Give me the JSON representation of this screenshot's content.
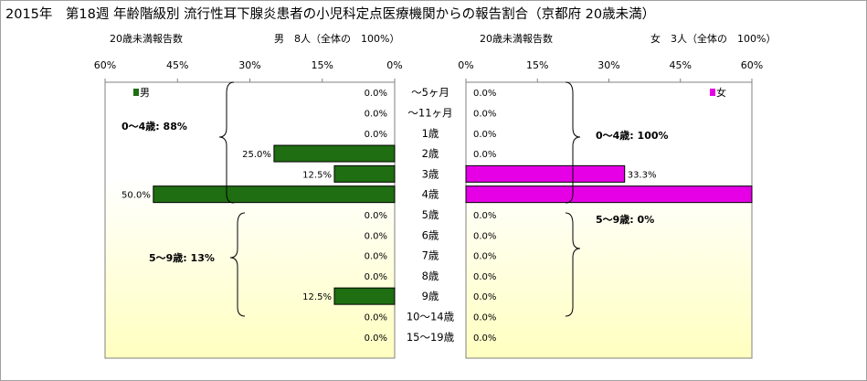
{
  "title": "2015年　第18週 年齢階級別 流行性耳下腺炎患者の小児科定点医療機関からの報告割合（京都府 20歳未満）",
  "colors": {
    "male_bar": "#1f6e12",
    "female_bar": "#e600e6",
    "panel_top": "#ffffff",
    "panel_bottom": "#ffffc0"
  },
  "left_panel": {
    "header_label": "20歳未満報告数",
    "header_count": "男　8人（全体の　100%）",
    "legend": "男",
    "group_labels": [
      "0～4歳: 88%",
      "5～9歳: 13%"
    ]
  },
  "right_panel": {
    "header_label": "20歳未満報告数",
    "header_count": "女　3人（全体の　100%）",
    "legend": "女",
    "group_labels": [
      "0～4歳: 100%",
      "5～9歳: 0%"
    ]
  },
  "chart_data": {
    "type": "bar",
    "orientation": "horizontal-pyramid",
    "categories": [
      "～5ヶ月",
      "～11ヶ月",
      "1歳",
      "2歳",
      "3歳",
      "4歳",
      "5歳",
      "6歳",
      "7歳",
      "8歳",
      "9歳",
      "10～14歳",
      "15～19歳"
    ],
    "xlim": [
      0,
      60
    ],
    "ticks": [
      "0%",
      "15%",
      "30%",
      "45%",
      "60%"
    ],
    "series": [
      {
        "name": "男",
        "values": [
          0.0,
          0.0,
          0.0,
          25.0,
          12.5,
          50.0,
          0.0,
          0.0,
          0.0,
          0.0,
          12.5,
          0.0,
          0.0
        ],
        "labels": [
          "0.0%",
          "0.0%",
          "0.0%",
          "25.0%",
          "12.5%",
          "50.0%",
          "0.0%",
          "0.0%",
          "0.0%",
          "0.0%",
          "12.5%",
          "0.0%",
          "0.0%"
        ]
      },
      {
        "name": "女",
        "values": [
          0.0,
          0.0,
          0.0,
          0.0,
          33.3,
          66.7,
          0.0,
          0.0,
          0.0,
          0.0,
          0.0,
          0.0,
          0.0
        ],
        "labels": [
          "0.0%",
          "0.0%",
          "0.0%",
          "0.0%",
          "33.3%",
          "",
          "0.0%",
          "0.0%",
          "0.0%",
          "0.0%",
          "0.0%",
          "0.0%",
          "0.0%"
        ]
      }
    ]
  }
}
